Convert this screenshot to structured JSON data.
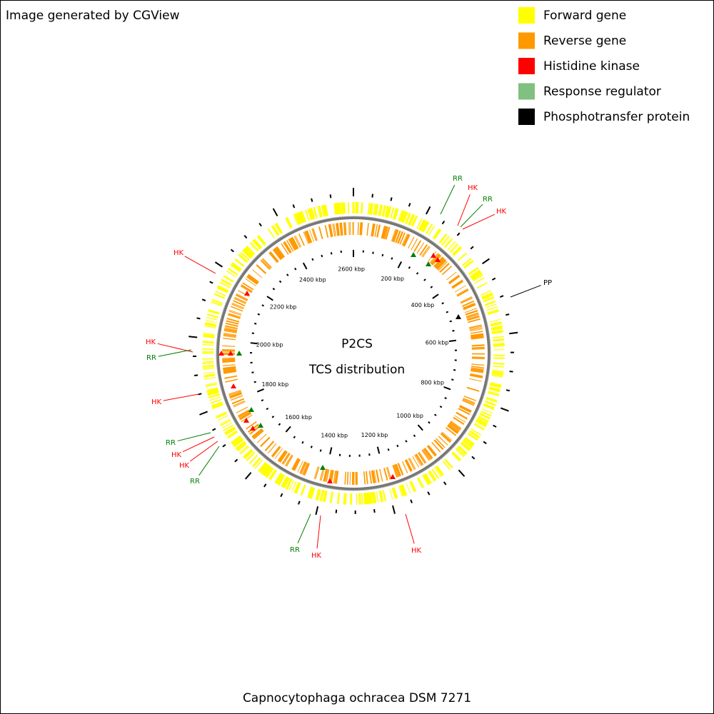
{
  "header": {
    "title": "Image generated by CGView"
  },
  "legend": [
    {
      "name": "Forward gene",
      "color": "#ffff00"
    },
    {
      "name": "Reverse gene",
      "color": "#ff9900"
    },
    {
      "name": "Histidine kinase",
      "color": "#ff0000"
    },
    {
      "name": "Response regulator",
      "color": "#80c080"
    },
    {
      "name": "Phosphotransfer protein",
      "color": "#000000"
    }
  ],
  "center": {
    "title": "P2CS",
    "subtitle": "TCS distribution"
  },
  "scale_labels": [
    "200 kbp",
    "400 kbp",
    "600 kbp",
    "800 kbp",
    "1000 kbp",
    "1200 kbp",
    "1400 kbp",
    "1600 kbp",
    "1800 kbp",
    "2000 kbp",
    "2200 kbp",
    "2400 kbp",
    "2600 kbp"
  ],
  "features": [
    {
      "label": "RR",
      "color": "#008000"
    },
    {
      "label": "HK",
      "color": "#ff0000"
    },
    {
      "label": "RR",
      "color": "#008000"
    },
    {
      "label": "HK",
      "color": "#ff0000"
    },
    {
      "label": "PP",
      "color": "#000000"
    },
    {
      "label": "HK",
      "color": "#ff0000"
    },
    {
      "label": "HK",
      "color": "#ff0000"
    },
    {
      "label": "RR",
      "color": "#008000"
    },
    {
      "label": "RR",
      "color": "#008000"
    },
    {
      "label": "HK",
      "color": "#ff0000"
    },
    {
      "label": "HK",
      "color": "#ff0000"
    },
    {
      "label": "RR",
      "color": "#008000"
    },
    {
      "label": "HK",
      "color": "#ff0000"
    },
    {
      "label": "HK",
      "color": "#ff0000"
    },
    {
      "label": "RR",
      "color": "#008000"
    },
    {
      "label": "HK",
      "color": "#ff0000"
    }
  ],
  "footer": {
    "organism": "Capnocytophaga ochracea DSM 7271"
  }
}
